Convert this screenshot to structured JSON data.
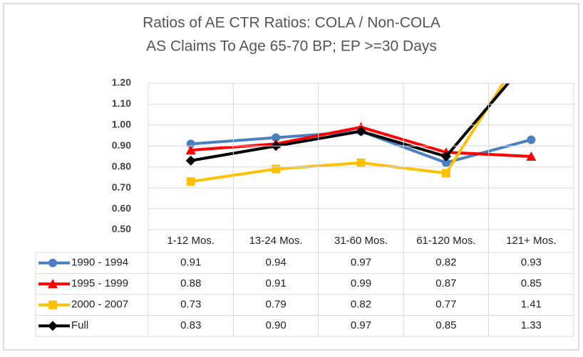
{
  "chart_data": {
    "type": "line",
    "title": "Ratios of AE CTR Ratios:  COLA / Non-COLA",
    "subtitle": "AS Claims To Age 65-70 BP; EP >=30 Days",
    "categories": [
      "1-12 Mos.",
      "13-24 Mos.",
      "31-60 Mos.",
      "61-120 Mos.",
      "121+ Mos."
    ],
    "series": [
      {
        "name": "1990 - 1994",
        "color": "#4a7fc1",
        "marker": "circle",
        "values": [
          0.91,
          0.94,
          0.97,
          0.82,
          0.93
        ],
        "value_labels": [
          "0.91",
          "0.94",
          "0.97",
          "0.82",
          "0.93"
        ]
      },
      {
        "name": "1995 - 1999",
        "color": "#ff0000",
        "marker": "triangle",
        "values": [
          0.88,
          0.91,
          0.99,
          0.87,
          0.85
        ],
        "value_labels": [
          "0.88",
          "0.91",
          "0.99",
          "0.87",
          "0.85"
        ]
      },
      {
        "name": "2000 - 2007",
        "color": "#ffc000",
        "marker": "square",
        "values": [
          0.73,
          0.79,
          0.82,
          0.77,
          1.41
        ],
        "value_labels": [
          "0.73",
          "0.79",
          "0.82",
          "0.77",
          "1.41"
        ]
      },
      {
        "name": "Full",
        "color": "#000000",
        "marker": "diamond",
        "values": [
          0.83,
          0.9,
          0.97,
          0.85,
          1.33
        ],
        "value_labels": [
          "0.83",
          "0.90",
          "0.97",
          "0.85",
          "1.33"
        ]
      }
    ],
    "ylim": [
      0.5,
      1.2
    ],
    "yticks": [
      {
        "value": 0.5,
        "label": "0.50"
      },
      {
        "value": 0.6,
        "label": "0.60"
      },
      {
        "value": 0.7,
        "label": "0.70"
      },
      {
        "value": 0.8,
        "label": "0.80"
      },
      {
        "value": 0.9,
        "label": "0.90"
      },
      {
        "value": 1.0,
        "label": "1.00"
      },
      {
        "value": 1.1,
        "label": "1.10"
      },
      {
        "value": 1.2,
        "label": "1.20"
      }
    ],
    "grid": true
  }
}
